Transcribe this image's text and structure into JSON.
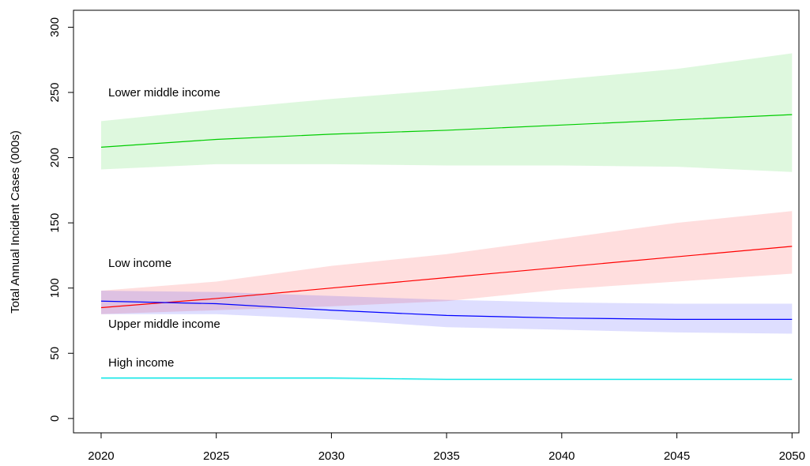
{
  "chart_data": {
    "type": "line",
    "y_label": "Total Annual Incident Cases (000s)",
    "x": [
      2020,
      2025,
      2030,
      2035,
      2040,
      2045,
      2050
    ],
    "xlim": [
      2018.8,
      2050.3
    ],
    "xticks": [
      2020,
      2025,
      2030,
      2035,
      2040,
      2045,
      2050
    ],
    "ylim": [
      -11,
      313
    ],
    "yticks": [
      0,
      50,
      100,
      150,
      200,
      250,
      300
    ],
    "series": [
      {
        "name": "Lower middle income",
        "color": "#00cc00",
        "values": [
          208,
          214,
          218,
          221,
          225,
          229,
          233
        ],
        "lower": [
          191,
          195,
          195,
          194,
          194,
          193,
          189
        ],
        "upper": [
          228,
          237,
          245,
          252,
          260,
          268,
          280
        ]
      },
      {
        "name": "Low income",
        "color": "#ff0000",
        "values": [
          85,
          92,
          100,
          108,
          116,
          124,
          132
        ],
        "lower": [
          80,
          83,
          86,
          90,
          99,
          105,
          111
        ],
        "upper": [
          98,
          105,
          117,
          126,
          138,
          150,
          159
        ]
      },
      {
        "name": "Upper middle income",
        "color": "#0000ff",
        "values": [
          90,
          88,
          83,
          79,
          77,
          76,
          76
        ],
        "lower": [
          80,
          80,
          76,
          70,
          68,
          66,
          65
        ],
        "upper": [
          98,
          97,
          94,
          91,
          89,
          88,
          88
        ]
      },
      {
        "name": "High income",
        "color": "#00e5e5",
        "values": [
          31,
          31,
          31,
          30,
          30,
          30,
          30
        ],
        "lower": [
          30,
          30,
          30,
          29,
          29,
          29,
          29
        ],
        "upper": [
          32,
          32,
          32,
          31,
          31,
          31,
          31
        ]
      }
    ]
  }
}
